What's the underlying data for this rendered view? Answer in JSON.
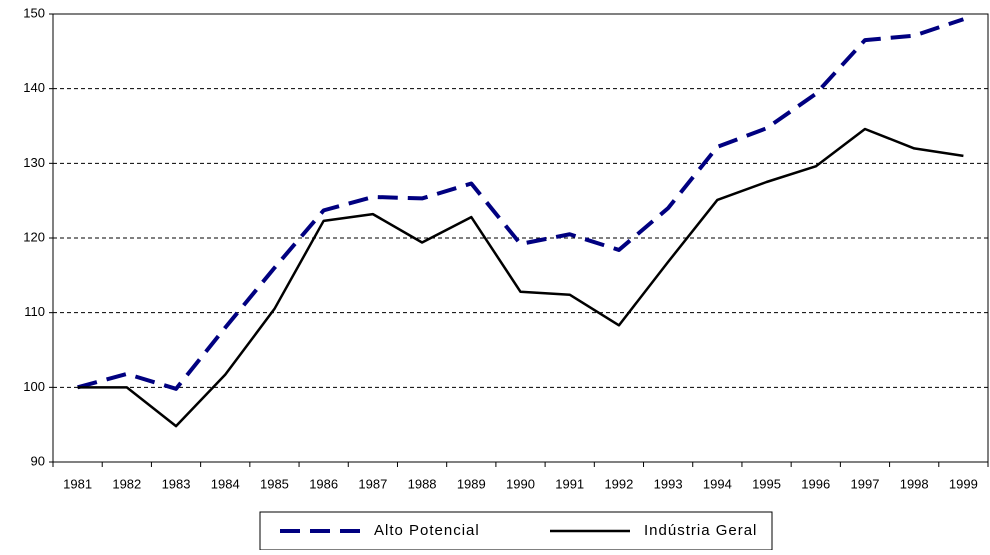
{
  "chart_data": {
    "type": "line",
    "categories": [
      "1981",
      "1982",
      "1983",
      "1984",
      "1985",
      "1986",
      "1987",
      "1988",
      "1989",
      "1990",
      "1991",
      "1992",
      "1993",
      "1994",
      "1995",
      "1996",
      "1997",
      "1998",
      "1999"
    ],
    "series": [
      {
        "name": "Alto Potencial",
        "color": "#000080",
        "dash": true,
        "values": [
          100,
          101.8,
          99.8,
          108,
          116,
          123.7,
          125.5,
          125.3,
          127.3,
          119.2,
          120.5,
          118.4,
          124,
          132.2,
          134.7,
          139.3,
          146.5,
          147.1,
          149.3
        ]
      },
      {
        "name": "Indústria Geral",
        "color": "#000000",
        "dash": false,
        "values": [
          100,
          100,
          94.8,
          101.7,
          110.5,
          122.3,
          123.2,
          119.4,
          122.8,
          112.8,
          112.4,
          108.3,
          116.8,
          125.1,
          127.5,
          129.6,
          134.6,
          132,
          131
        ]
      }
    ],
    "ylim": [
      90,
      150
    ],
    "yticks": [
      90,
      100,
      110,
      120,
      130,
      140,
      150
    ],
    "grid": true,
    "legend": "bottom"
  }
}
